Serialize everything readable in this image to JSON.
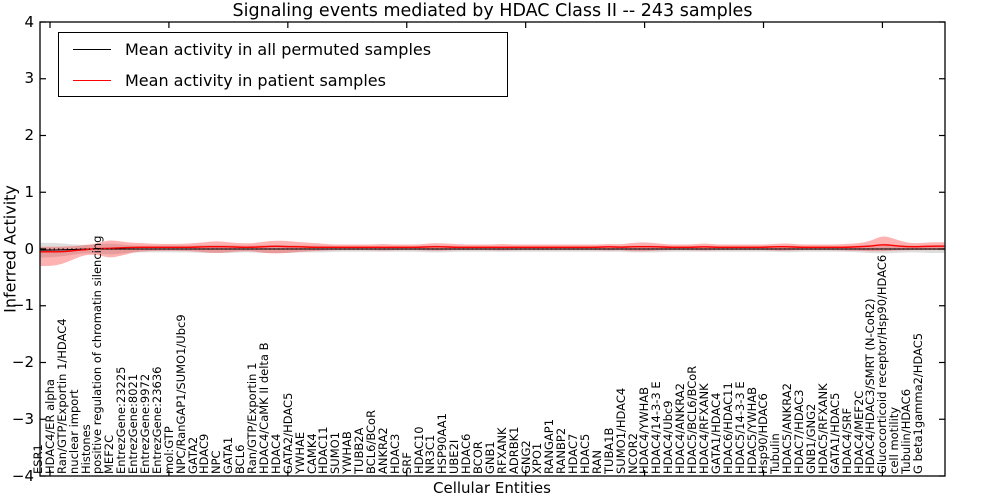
{
  "title": "Signaling events mediated by HDAC Class II -- 243 samples",
  "legend": {
    "entries": [
      {
        "label": "Mean activity in all permuted samples",
        "color": "#000000"
      },
      {
        "label": "Mean activity in patient samples",
        "color": "#ff0000"
      }
    ]
  },
  "axes": {
    "ytick_labels": [
      "4",
      "3",
      "2",
      "1",
      "0",
      "−1",
      "−2",
      "−3",
      "−4"
    ],
    "ytick_values": [
      4,
      3,
      2,
      1,
      0,
      -1,
      -2,
      -3,
      -4
    ]
  },
  "chart_data": {
    "type": "line",
    "title": "Signaling events mediated by HDAC Class II -- 243 samples",
    "xlabel": "Cellular Entities",
    "ylabel": "Inferred Activity",
    "ylim": [
      -4,
      4
    ],
    "grid": false,
    "legend_position": "upper left",
    "zero_line": "black dotted line at y=0",
    "categories": [
      "ESR1",
      "HDAC4/ER alpha",
      "Ran/GTP/Exportin 1/HDAC4",
      "nuclear import",
      "Histones",
      "positive regulation of chromatin silencing",
      "MEF2C",
      "EntrezGene:23225",
      "EntrezGene:8021",
      "EntrezGene:9972",
      "EntrezGene:23636",
      "mol:GTP",
      "NPC/RanGAP1/SUMO1/Ubc9",
      "GATA2",
      "HDAC9",
      "NPC",
      "GATA1",
      "BCL6",
      "Ran/GTP/Exportin 1",
      "HDAC4/CaMK II delta B",
      "HDAC4",
      "GATA2/HDAC5",
      "YWHAE",
      "CAMK4",
      "HDAC11",
      "SUMO1",
      "YWHAB",
      "TUBB2A",
      "BCL6/BCoR",
      "ANKRA2",
      "HDAC3",
      "SRF",
      "HDAC10",
      "NR3C1",
      "HSP90AA1",
      "UBE2I",
      "HDAC6",
      "BCOR",
      "GNB1",
      "RFXANK",
      "ADRBK1",
      "GNG2",
      "XPO1",
      "RANGAP1",
      "RANBP2",
      "HDAC7",
      "HDAC5",
      "RAN",
      "TUBA1B",
      "SUMO1/HDAC4",
      "NCOR2",
      "HDAC4/YWHAB",
      "HDAC4/14-3-3 E",
      "HDAC4/Ubc9",
      "HDAC4/ANKRA2",
      "HDAC5/BCL6/BCoR",
      "HDAC4/RFXANK",
      "GATA1/HDAC4",
      "HDAC6/HDAC11",
      "HDAC5/14-3-3 E",
      "HDAC5/YWHAB",
      "Hsp90/HDAC6",
      "Tubulin",
      "HDAC5/ANKRA2",
      "HDAC7/HDAC3",
      "GNB1/GNG2",
      "HDAC5/RFXANK",
      "GATA1/HDAC5",
      "HDAC4/SRF",
      "HDAC4/MEF2C",
      "HDAC4/HDAC3/SMRT (N-CoR2)",
      "Glucocorticoid receptor/Hsp90/HDAC6",
      "cell motility",
      "Tubulin/HDAC6",
      "G beta1gamma2/HDAC5"
    ],
    "series": [
      {
        "name": "Mean activity in all permuted samples",
        "color": "#000000",
        "band_opacity": 0.13,
        "values": [
          -0.02,
          -0.015,
          -0.01,
          0,
          0,
          0,
          0,
          0,
          0,
          0,
          0,
          0,
          0,
          0,
          0,
          0,
          0,
          0,
          0,
          0,
          0,
          0,
          0,
          0,
          0,
          0,
          0,
          0,
          0,
          0,
          0,
          0,
          0,
          0,
          0,
          0,
          0,
          0,
          0,
          0,
          0,
          0,
          0,
          0,
          0,
          0,
          0,
          0,
          0,
          0,
          0,
          0,
          0,
          0,
          0,
          0,
          0,
          0,
          0,
          0,
          0,
          0,
          0,
          0,
          0,
          0,
          0,
          0,
          0,
          0,
          0,
          0,
          0,
          0,
          0
        ],
        "band_lo": [
          -0.15,
          -0.13,
          -0.1,
          -0.07,
          -0.08,
          -0.1,
          -0.08,
          -0.06,
          -0.06,
          -0.06,
          -0.06,
          -0.06,
          -0.06,
          -0.07,
          -0.07,
          -0.07,
          -0.06,
          -0.06,
          -0.07,
          -0.07,
          -0.07,
          -0.06,
          -0.06,
          -0.06,
          -0.05,
          -0.05,
          -0.05,
          -0.05,
          -0.05,
          -0.05,
          -0.05,
          -0.05,
          -0.06,
          -0.06,
          -0.05,
          -0.05,
          -0.05,
          -0.05,
          -0.05,
          -0.05,
          -0.05,
          -0.05,
          -0.05,
          -0.05,
          -0.05,
          -0.05,
          -0.05,
          -0.05,
          -0.05,
          -0.06,
          -0.06,
          -0.06,
          -0.05,
          -0.05,
          -0.05,
          -0.05,
          -0.05,
          -0.05,
          -0.05,
          -0.05,
          -0.05,
          -0.05,
          -0.06,
          -0.05,
          -0.05,
          -0.05,
          -0.05,
          -0.05,
          -0.06,
          -0.07,
          -0.08,
          -0.07,
          -0.06,
          -0.06,
          -0.07
        ],
        "band_hi": [
          0.11,
          0.1,
          0.08,
          0.07,
          0.08,
          0.1,
          0.08,
          0.06,
          0.06,
          0.06,
          0.06,
          0.06,
          0.06,
          0.07,
          0.07,
          0.07,
          0.06,
          0.06,
          0.07,
          0.07,
          0.07,
          0.06,
          0.06,
          0.06,
          0.05,
          0.05,
          0.05,
          0.05,
          0.05,
          0.05,
          0.05,
          0.05,
          0.06,
          0.06,
          0.05,
          0.05,
          0.05,
          0.05,
          0.05,
          0.05,
          0.05,
          0.05,
          0.05,
          0.05,
          0.05,
          0.05,
          0.05,
          0.05,
          0.05,
          0.06,
          0.06,
          0.06,
          0.05,
          0.05,
          0.05,
          0.05,
          0.05,
          0.05,
          0.05,
          0.05,
          0.05,
          0.05,
          0.06,
          0.05,
          0.05,
          0.05,
          0.05,
          0.05,
          0.06,
          0.07,
          0.08,
          0.07,
          0.06,
          0.06,
          0.07
        ]
      },
      {
        "name": "Mean activity in patient samples",
        "color": "#ff0000",
        "band_opacity": 0.3,
        "values": [
          -0.05,
          -0.05,
          -0.03,
          -0.01,
          0.01,
          0.01,
          0.02,
          0.03,
          0.03,
          0.03,
          0.03,
          0.03,
          0.03,
          0.04,
          0.04,
          0.04,
          0.03,
          0.03,
          0.04,
          0.05,
          0.04,
          0.04,
          0.03,
          0.03,
          0.03,
          0.03,
          0.03,
          0.03,
          0.03,
          0.03,
          0.03,
          0.03,
          0.04,
          0.04,
          0.03,
          0.03,
          0.03,
          0.03,
          0.03,
          0.03,
          0.03,
          0.03,
          0.03,
          0.03,
          0.03,
          0.03,
          0.03,
          0.04,
          0.03,
          0.04,
          0.04,
          0.04,
          0.03,
          0.03,
          0.03,
          0.04,
          0.03,
          0.03,
          0.03,
          0.03,
          0.03,
          0.04,
          0.04,
          0.03,
          0.03,
          0.03,
          0.03,
          0.03,
          0.04,
          0.05,
          0.08,
          0.06,
          0.04,
          0.04,
          0.05
        ],
        "band_lo": [
          -0.3,
          -0.27,
          -0.18,
          -0.1,
          -0.1,
          -0.16,
          -0.12,
          -0.06,
          -0.04,
          -0.03,
          -0.03,
          -0.03,
          -0.04,
          -0.06,
          -0.07,
          -0.06,
          -0.04,
          -0.04,
          -0.07,
          -0.08,
          -0.07,
          -0.05,
          -0.04,
          -0.03,
          -0.02,
          -0.02,
          -0.02,
          -0.02,
          -0.03,
          -0.02,
          -0.02,
          -0.02,
          -0.03,
          -0.03,
          -0.02,
          -0.02,
          -0.02,
          -0.02,
          -0.03,
          -0.02,
          -0.02,
          -0.02,
          -0.02,
          -0.02,
          -0.02,
          -0.02,
          -0.02,
          -0.03,
          -0.02,
          -0.04,
          -0.04,
          -0.03,
          -0.02,
          -0.02,
          -0.02,
          -0.03,
          -0.02,
          -0.02,
          -0.02,
          -0.02,
          -0.02,
          -0.03,
          -0.03,
          -0.02,
          -0.02,
          -0.02,
          -0.02,
          -0.03,
          -0.03,
          -0.04,
          -0.04,
          -0.03,
          -0.02,
          -0.02,
          -0.02
        ],
        "band_hi": [
          0.04,
          0.04,
          0.05,
          0.07,
          0.1,
          0.16,
          0.13,
          0.11,
          0.1,
          0.09,
          0.09,
          0.09,
          0.1,
          0.12,
          0.14,
          0.12,
          0.1,
          0.1,
          0.13,
          0.15,
          0.14,
          0.12,
          0.11,
          0.09,
          0.08,
          0.08,
          0.08,
          0.08,
          0.09,
          0.08,
          0.08,
          0.08,
          0.1,
          0.1,
          0.09,
          0.08,
          0.08,
          0.08,
          0.09,
          0.08,
          0.08,
          0.08,
          0.08,
          0.08,
          0.08,
          0.08,
          0.08,
          0.09,
          0.08,
          0.11,
          0.12,
          0.1,
          0.08,
          0.08,
          0.08,
          0.1,
          0.08,
          0.08,
          0.08,
          0.08,
          0.08,
          0.09,
          0.1,
          0.08,
          0.08,
          0.08,
          0.08,
          0.09,
          0.1,
          0.14,
          0.24,
          0.18,
          0.11,
          0.1,
          0.12
        ]
      }
    ]
  }
}
